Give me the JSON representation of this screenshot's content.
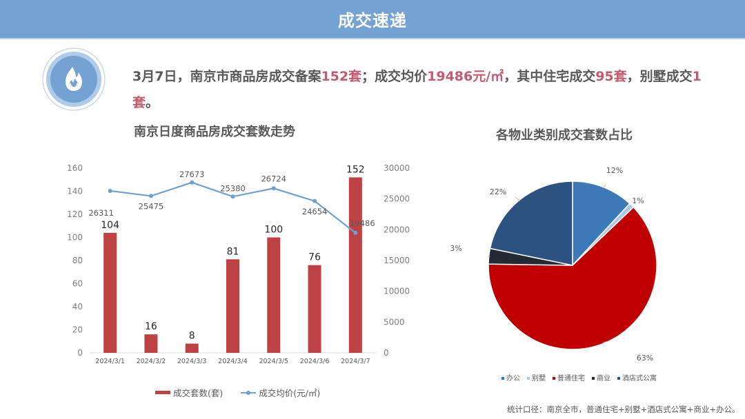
{
  "header": {
    "title": "成交速递"
  },
  "icon": {
    "name": "fire-icon"
  },
  "summary": {
    "parts": [
      {
        "text": "3月7日，南京市商品房成交备案",
        "highlight": false
      },
      {
        "text": "152套",
        "highlight": true
      },
      {
        "text": "；成交均价",
        "highlight": false
      },
      {
        "text": "19486元/㎡",
        "highlight": true
      },
      {
        "text": "，其中住宅成交",
        "highlight": false
      },
      {
        "text": "95套",
        "highlight": true
      },
      {
        "text": "，别墅成交",
        "highlight": false
      },
      {
        "text": "1套",
        "highlight": true
      },
      {
        "text": "。",
        "highlight": false
      }
    ]
  },
  "colors": {
    "header_bg": "#74a2d2",
    "highlight": "#c55a6f",
    "bar": "#be4144",
    "line": "#6e9fd5",
    "pie_office": "#3d78b9",
    "pie_villa": "#a8c8ea",
    "pie_residential": "#c00000",
    "pie_commercial": "#222a35",
    "pie_serviced_apartment": "#2c527f"
  },
  "footnote": "统计口径：南京全市，普通住宅+别墅+酒店式公寓+商业+办公。",
  "chart_data": [
    {
      "type": "bar+line",
      "title": "南京日度商品房成交套数走势",
      "categories": [
        "2024/3/1",
        "2024/3/2",
        "2024/3/3",
        "2024/3/4",
        "2024/3/5",
        "2024/3/6",
        "2024/3/7"
      ],
      "series": [
        {
          "name": "成交套数(套)",
          "type": "bar",
          "axis": "left",
          "values": [
            104,
            16,
            8,
            81,
            100,
            76,
            152
          ]
        },
        {
          "name": "成交均价(元/㎡)",
          "type": "line",
          "axis": "right",
          "values": [
            26311,
            25475,
            27673,
            25380,
            26724,
            24654,
            19486
          ]
        }
      ],
      "y_left": {
        "min": 0,
        "max": 160,
        "ticks": [
          0,
          20,
          40,
          60,
          80,
          100,
          120,
          140,
          160
        ]
      },
      "y_right": {
        "min": 0,
        "max": 30000,
        "ticks": [
          0,
          5000,
          10000,
          15000,
          20000,
          25000,
          30000
        ]
      },
      "legend": [
        "成交套数(套)",
        "成交均价(元/㎡)"
      ],
      "legend_position": "bottom",
      "grid": false
    },
    {
      "type": "pie",
      "title": "各物业类别成交套数占比",
      "labels": [
        "办公",
        "别墅",
        "普通住宅",
        "商业",
        "酒店式公寓"
      ],
      "values": [
        12,
        1,
        63,
        3,
        22
      ],
      "value_labels": [
        "12%",
        "1%",
        "63%",
        "3%",
        "22%"
      ],
      "legend_position": "bottom"
    }
  ]
}
